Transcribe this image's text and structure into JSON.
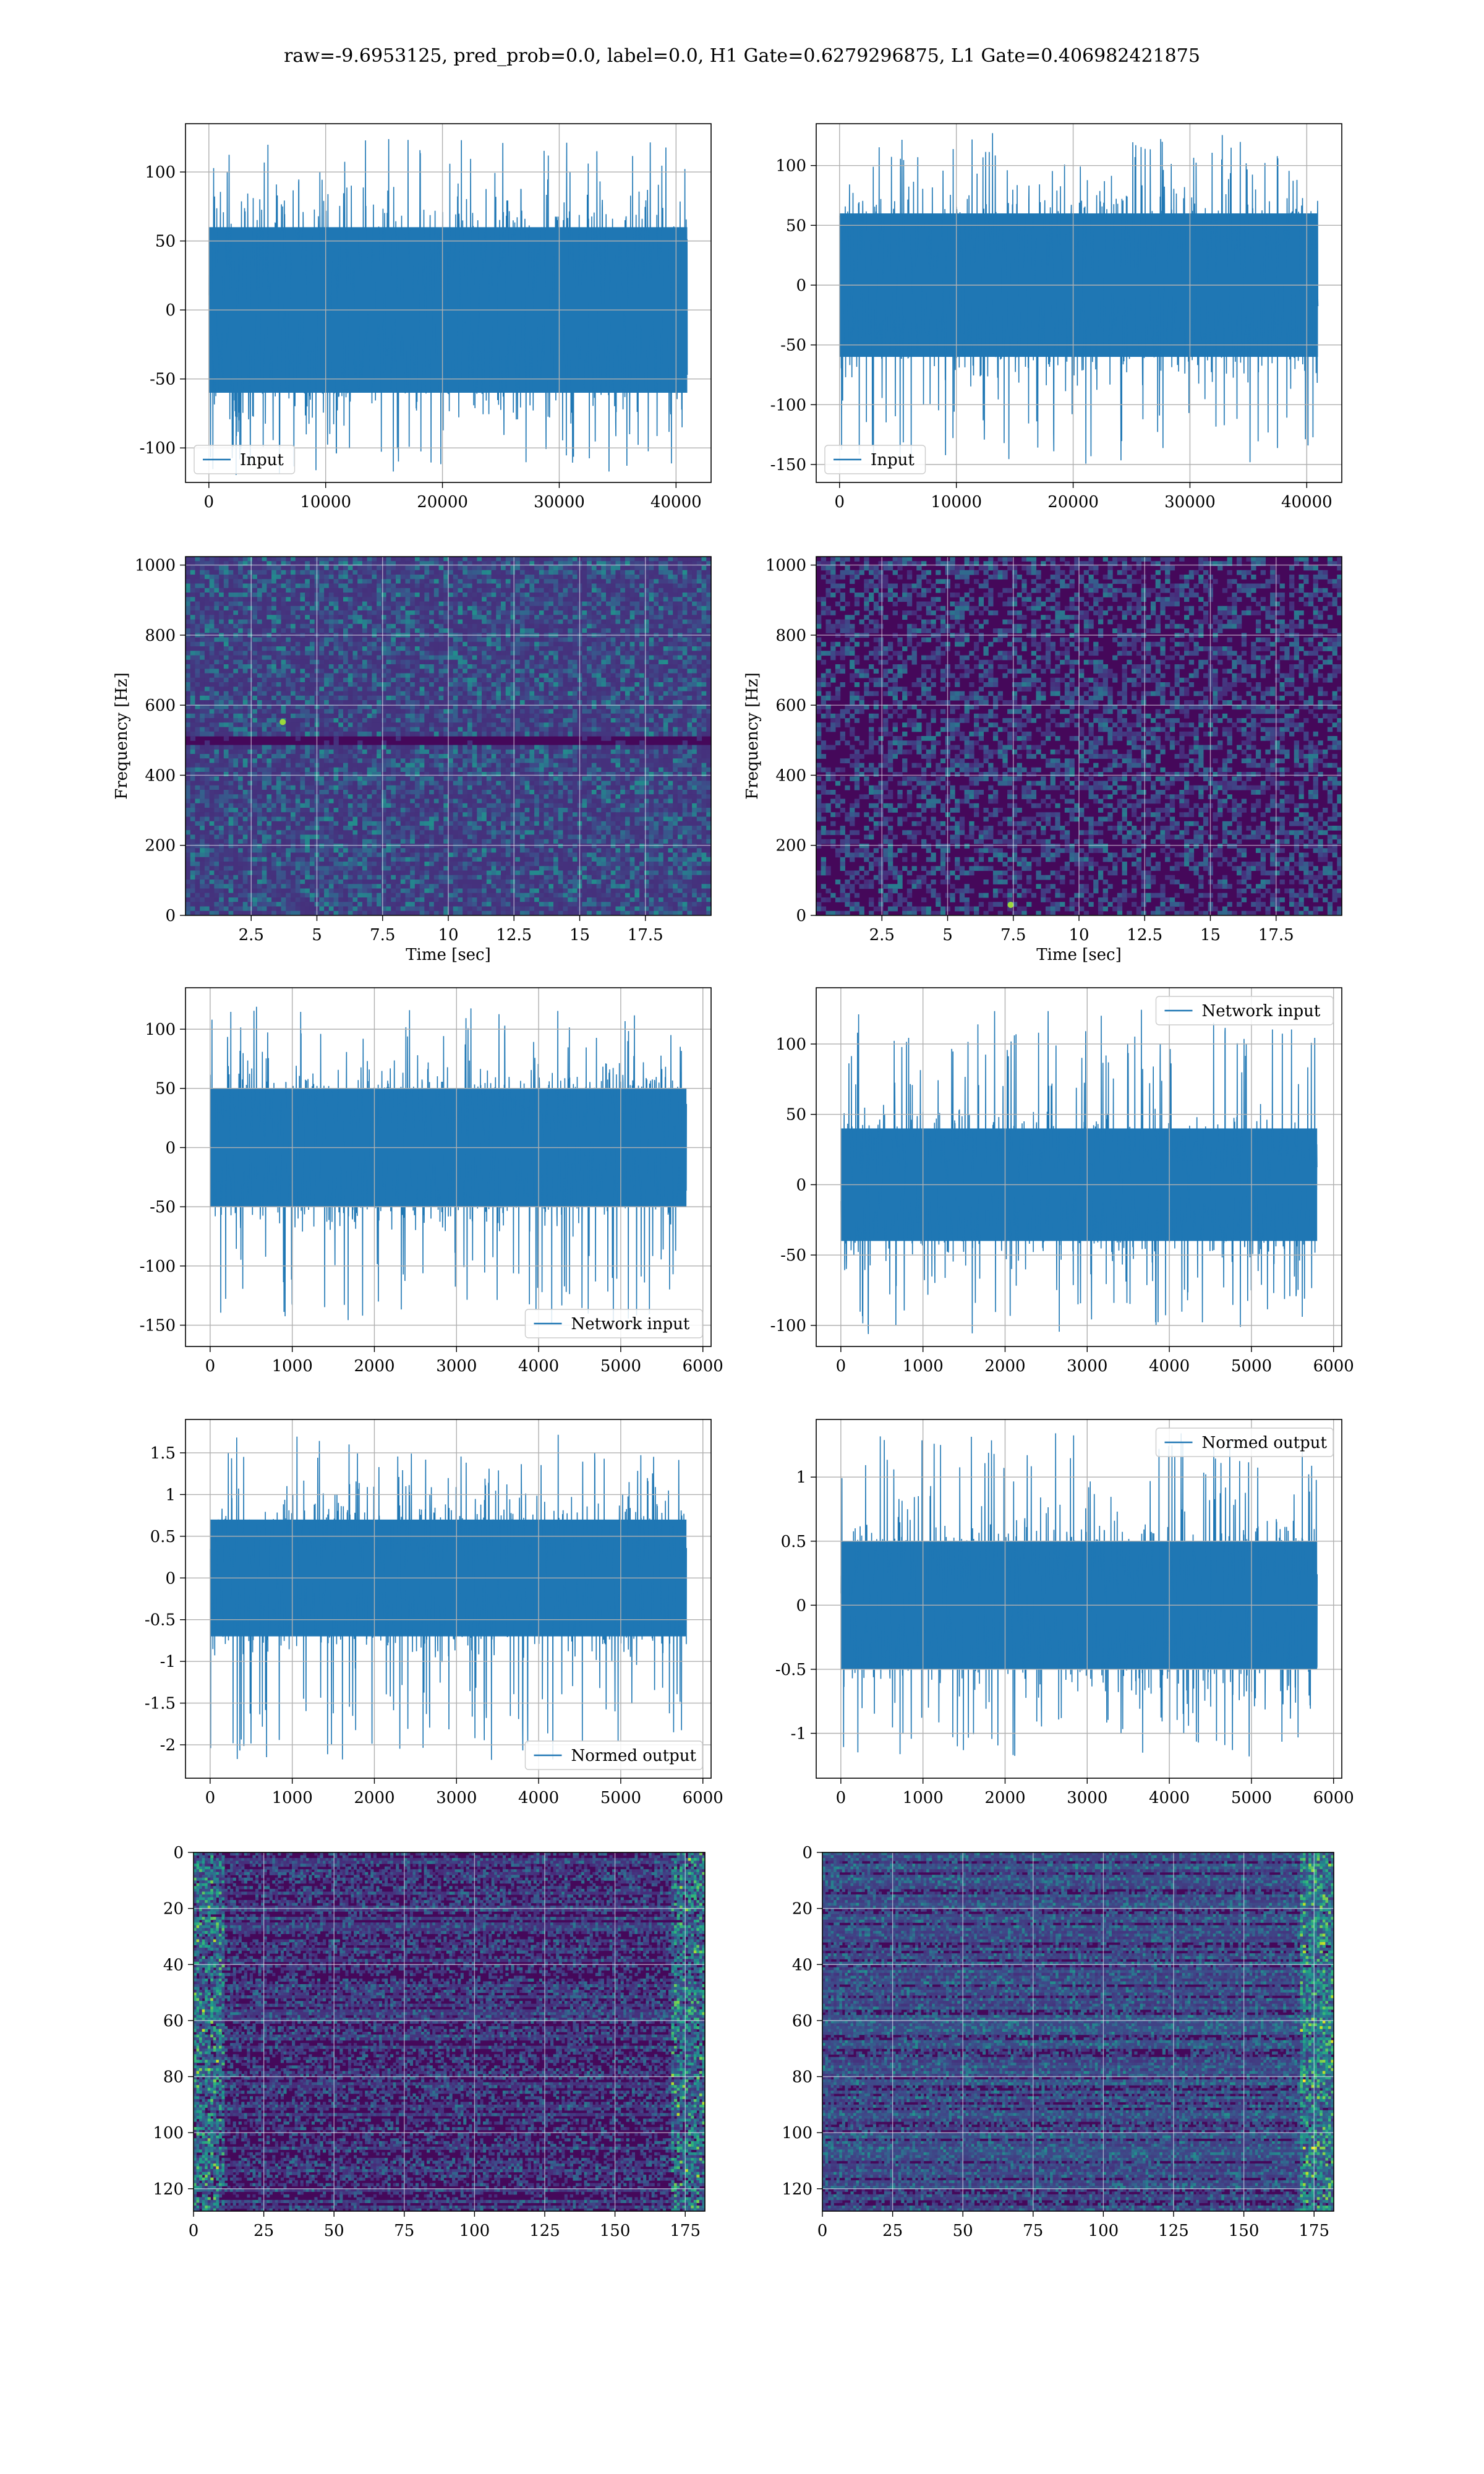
{
  "figure": {
    "suptitle": "raw=-9.6953125, pred_prob=0.0, label=0.0, H1 Gate=0.6279296875, L1 Gate=0.406982421875",
    "colors": {
      "series": "#1f77b4",
      "grid": "#b0b0b0",
      "spine": "#000000"
    }
  },
  "chart_data": [
    {
      "id": "h1-input",
      "type": "line",
      "series": [
        {
          "name": "Input"
        }
      ],
      "legend": "lower-left",
      "xlim": [
        -2000,
        43000
      ],
      "ylim": [
        -125,
        135
      ],
      "xticks": [
        0,
        10000,
        20000,
        30000,
        40000
      ],
      "yticks": [
        -100,
        -50,
        0,
        50,
        100
      ],
      "n_points": 40960,
      "center": 0,
      "core_band": [
        -60,
        60
      ],
      "peaks": [
        -120,
        125
      ]
    },
    {
      "id": "l1-input",
      "type": "line",
      "series": [
        {
          "name": "Input"
        }
      ],
      "legend": "lower-left",
      "xlim": [
        -2000,
        43000
      ],
      "ylim": [
        -165,
        135
      ],
      "xticks": [
        0,
        10000,
        20000,
        30000,
        40000
      ],
      "yticks": [
        -150,
        -100,
        -50,
        0,
        50,
        100
      ],
      "n_points": 40960,
      "center": 0,
      "core_band": [
        -60,
        60
      ],
      "peaks": [
        -152,
        128
      ]
    },
    {
      "id": "h1-spectrogram",
      "type": "heatmap",
      "colormap": "viridis",
      "xlabel": "Time [sec]",
      "ylabel": "Frequency [Hz]",
      "xlim": [
        0,
        20
      ],
      "ylim": [
        0,
        1024
      ],
      "xticks": [
        2.5,
        5.0,
        7.5,
        10.0,
        12.5,
        15.0,
        17.5
      ],
      "yticks": [
        0,
        200,
        400,
        600,
        800,
        1000
      ],
      "intensity": "moderate",
      "hot_spots": [
        [
          3.7,
          552
        ]
      ],
      "dark_band_hz": 500
    },
    {
      "id": "l1-spectrogram",
      "type": "heatmap",
      "colormap": "viridis",
      "xlabel": "Time [sec]",
      "ylabel": "Frequency [Hz]",
      "xlim": [
        0,
        20
      ],
      "ylim": [
        0,
        1024
      ],
      "xticks": [
        2.5,
        5.0,
        7.5,
        10.0,
        12.5,
        15.0,
        17.5
      ],
      "yticks": [
        0,
        200,
        400,
        600,
        800,
        1000
      ],
      "intensity": "low",
      "hot_spots": [
        [
          7.4,
          30
        ]
      ]
    },
    {
      "id": "h1-network-input",
      "type": "line",
      "series": [
        {
          "name": "Network input"
        }
      ],
      "legend": "lower-right",
      "xlim": [
        -300,
        6100
      ],
      "ylim": [
        -168,
        135
      ],
      "xticks": [
        0,
        1000,
        2000,
        3000,
        4000,
        5000,
        6000
      ],
      "yticks": [
        -150,
        -100,
        -50,
        0,
        50,
        100
      ],
      "n_points": 5800,
      "center": 0,
      "core_band": [
        -50,
        50
      ],
      "peaks": [
        -150,
        120
      ]
    },
    {
      "id": "l1-network-input",
      "type": "line",
      "series": [
        {
          "name": "Network input"
        }
      ],
      "legend": "upper-right",
      "xlim": [
        -300,
        6100
      ],
      "ylim": [
        -115,
        140
      ],
      "xticks": [
        0,
        1000,
        2000,
        3000,
        4000,
        5000,
        6000
      ],
      "yticks": [
        -100,
        -50,
        0,
        50,
        100
      ],
      "n_points": 5800,
      "center": 0,
      "core_band": [
        -40,
        40
      ],
      "peaks": [
        -108,
        125
      ]
    },
    {
      "id": "h1-normed-output",
      "type": "line",
      "series": [
        {
          "name": "Normed output"
        }
      ],
      "legend": "lower-right",
      "xlim": [
        -300,
        6100
      ],
      "ylim": [
        -2.4,
        1.9
      ],
      "xticks": [
        0,
        1000,
        2000,
        3000,
        4000,
        5000,
        6000
      ],
      "yticks": [
        -2.0,
        -1.5,
        -1.0,
        -0.5,
        0.0,
        0.5,
        1.0,
        1.5
      ],
      "n_points": 5800,
      "center": 0,
      "core_band": [
        -0.7,
        0.7
      ],
      "peaks": [
        -2.2,
        1.72
      ]
    },
    {
      "id": "l1-normed-output",
      "type": "line",
      "series": [
        {
          "name": "Normed output"
        }
      ],
      "legend": "upper-right",
      "xlim": [
        -300,
        6100
      ],
      "ylim": [
        -1.35,
        1.45
      ],
      "xticks": [
        0,
        1000,
        2000,
        3000,
        4000,
        5000,
        6000
      ],
      "yticks": [
        -1.0,
        -0.5,
        0.0,
        0.5,
        1.0
      ],
      "n_points": 5800,
      "center": 0,
      "core_band": [
        -0.5,
        0.5
      ],
      "peaks": [
        -1.2,
        1.35
      ]
    },
    {
      "id": "h1-feature-map",
      "type": "heatmap",
      "colormap": "viridis",
      "xlim": [
        0,
        182
      ],
      "ylim": [
        128,
        0
      ],
      "xticks": [
        0,
        25,
        50,
        75,
        100,
        125,
        150,
        175
      ],
      "yticks": [
        0,
        20,
        40,
        60,
        80,
        100,
        120
      ],
      "intensity": "low",
      "bright_edges": [
        "left",
        "right"
      ]
    },
    {
      "id": "l1-feature-map",
      "type": "heatmap",
      "colormap": "viridis",
      "xlim": [
        0,
        182
      ],
      "ylim": [
        128,
        0
      ],
      "xticks": [
        0,
        25,
        50,
        75,
        100,
        125,
        150,
        175
      ],
      "yticks": [
        0,
        20,
        40,
        60,
        80,
        100,
        120
      ],
      "intensity": "moderate",
      "bright_edges": [
        "right"
      ]
    }
  ]
}
